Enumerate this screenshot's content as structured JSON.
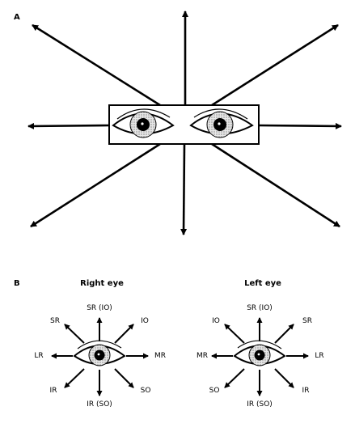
{
  "panels": {
    "a": {
      "label": "A"
    },
    "b": {
      "label": "B"
    }
  },
  "right_eye": {
    "title": "Right eye",
    "labels": {
      "up": "SR (IO)",
      "down": "IR (SO)",
      "upper_left": "SR",
      "upper_right": "IO",
      "left": "LR",
      "right": "MR",
      "lower_left": "IR",
      "lower_right": "SO"
    }
  },
  "left_eye": {
    "title": "Left eye",
    "labels": {
      "up": "SR (IO)",
      "down": "IR (SO)",
      "upper_left": "IO",
      "upper_right": "SR",
      "left": "MR",
      "right": "LR",
      "lower_left": "SO",
      "lower_right": "IR"
    }
  }
}
